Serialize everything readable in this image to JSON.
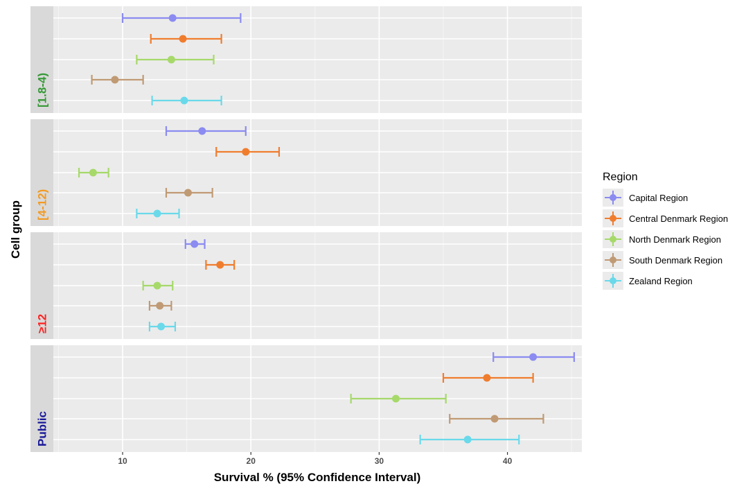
{
  "chart_data": {
    "type": "scatter",
    "subtype": "dot-and-whisker",
    "xlabel": "Survival % (95% Confidence Interval)",
    "ylabel": "Cell group",
    "xlim": [
      4.6,
      45.8
    ],
    "x_ticks": [
      10,
      20,
      30,
      40
    ],
    "grid": true,
    "legend": {
      "title": "Region",
      "position": "right",
      "items": [
        {
          "name": "Capital Region",
          "color": "#8b8bf1"
        },
        {
          "name": "Central Denmark Region",
          "color": "#f07d2e"
        },
        {
          "name": "North Denmark Region",
          "color": "#a6d96a"
        },
        {
          "name": "South Denmark Region",
          "color": "#c09a74"
        },
        {
          "name": "Zealand Region",
          "color": "#6ad9ea"
        }
      ]
    },
    "panels": [
      {
        "label": "[1.8-4)",
        "label_color": "#339933",
        "points": [
          {
            "region": "Capital Region",
            "estimate": 13.9,
            "lower": 10.0,
            "upper": 19.2
          },
          {
            "region": "Central Denmark Region",
            "estimate": 14.7,
            "lower": 12.2,
            "upper": 17.7
          },
          {
            "region": "North Denmark Region",
            "estimate": 13.8,
            "lower": 11.1,
            "upper": 17.1
          },
          {
            "region": "South Denmark Region",
            "estimate": 9.4,
            "lower": 7.6,
            "upper": 11.6
          },
          {
            "region": "Zealand Region",
            "estimate": 14.8,
            "lower": 12.3,
            "upper": 17.7
          }
        ]
      },
      {
        "label": "[4-12)",
        "label_color": "#f39a21",
        "points": [
          {
            "region": "Capital Region",
            "estimate": 16.2,
            "lower": 13.4,
            "upper": 19.6
          },
          {
            "region": "Central Denmark Region",
            "estimate": 19.6,
            "lower": 17.3,
            "upper": 22.2
          },
          {
            "region": "North Denmark Region",
            "estimate": 7.7,
            "lower": 6.6,
            "upper": 8.9
          },
          {
            "region": "South Denmark Region",
            "estimate": 15.1,
            "lower": 13.4,
            "upper": 17.0
          },
          {
            "region": "Zealand Region",
            "estimate": 12.7,
            "lower": 11.1,
            "upper": 14.4
          }
        ]
      },
      {
        "label": "≥12",
        "label_color": "#ff2020",
        "points": [
          {
            "region": "Capital Region",
            "estimate": 15.6,
            "lower": 14.9,
            "upper": 16.4
          },
          {
            "region": "Central Denmark Region",
            "estimate": 17.6,
            "lower": 16.5,
            "upper": 18.7
          },
          {
            "region": "North Denmark Region",
            "estimate": 12.7,
            "lower": 11.6,
            "upper": 13.9
          },
          {
            "region": "South Denmark Region",
            "estimate": 12.9,
            "lower": 12.1,
            "upper": 13.8
          },
          {
            "region": "Zealand Region",
            "estimate": 13.0,
            "lower": 12.1,
            "upper": 14.1
          }
        ]
      },
      {
        "label": "Public",
        "label_color": "#1a1a99",
        "points": [
          {
            "region": "Capital Region",
            "estimate": 42.0,
            "lower": 38.9,
            "upper": 45.2
          },
          {
            "region": "Central Denmark Region",
            "estimate": 38.4,
            "lower": 35.0,
            "upper": 42.0
          },
          {
            "region": "North Denmark Region",
            "estimate": 31.3,
            "lower": 27.8,
            "upper": 35.2
          },
          {
            "region": "South Denmark Region",
            "estimate": 39.0,
            "lower": 35.5,
            "upper": 42.8
          },
          {
            "region": "Zealand Region",
            "estimate": 36.9,
            "lower": 33.2,
            "upper": 40.9
          }
        ]
      }
    ]
  }
}
